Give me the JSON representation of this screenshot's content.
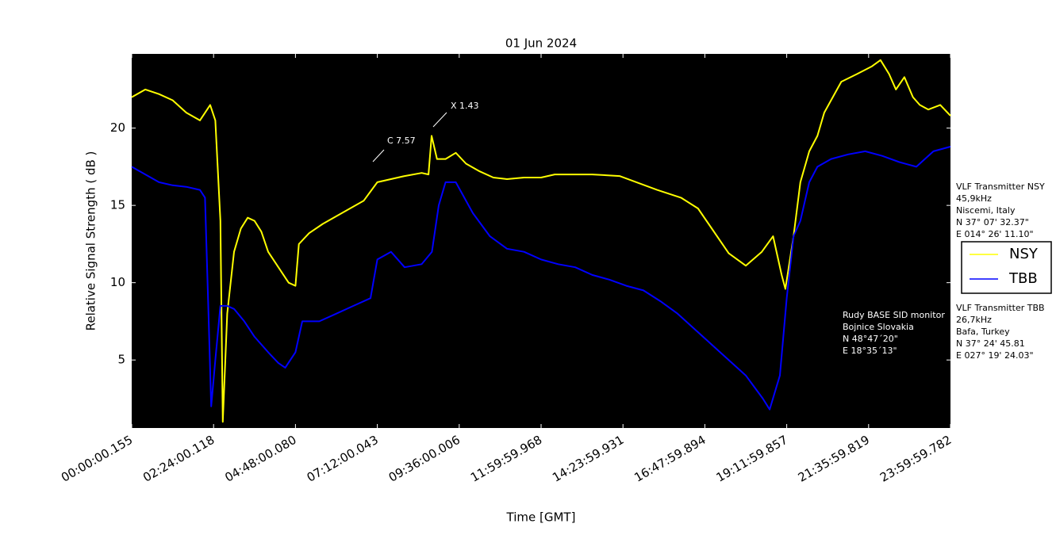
{
  "chart_data": {
    "type": "line",
    "title": "01 Jun 2024",
    "xlabel": "Time [GMT]",
    "ylabel": "Relative Signal Strength ( dB )",
    "xlim": [
      0,
      24
    ],
    "ylim": [
      0.6,
      24.8
    ],
    "xticks": [
      {
        "value": 0,
        "label": "00:00:00.155"
      },
      {
        "value": 2.4,
        "label": "02:24:00.118"
      },
      {
        "value": 4.8,
        "label": "04:48:00.080"
      },
      {
        "value": 7.2,
        "label": "07:12:00.043"
      },
      {
        "value": 9.6,
        "label": "09:36:00.006"
      },
      {
        "value": 12,
        "label": "11:59:59.968"
      },
      {
        "value": 14.4,
        "label": "14:23:59.931"
      },
      {
        "value": 16.8,
        "label": "16:47:59.894"
      },
      {
        "value": 19.2,
        "label": "19:11:59.857"
      },
      {
        "value": 21.6,
        "label": "21:35:59.819"
      },
      {
        "value": 24,
        "label": "23:59:59.782"
      }
    ],
    "yticks": [
      5,
      10,
      15,
      20
    ],
    "background": "#000000",
    "series": [
      {
        "name": "NSY",
        "color": "#ffff00",
        "x": [
          0,
          0.4,
          0.8,
          1.2,
          1.6,
          2.0,
          2.3,
          2.45,
          2.6,
          2.67,
          2.8,
          3.0,
          3.2,
          3.4,
          3.6,
          3.8,
          4.0,
          4.3,
          4.6,
          4.8,
          4.9,
          5.2,
          5.6,
          6.0,
          6.4,
          6.8,
          7.2,
          8.0,
          8.5,
          8.7,
          8.79,
          8.95,
          9.2,
          9.5,
          9.8,
          10.2,
          10.6,
          11.0,
          11.5,
          12.0,
          12.4,
          13.0,
          13.5,
          14.3,
          15.4,
          16.1,
          16.6,
          17.5,
          18.0,
          18.47,
          18.8,
          19.05,
          19.16,
          19.4,
          19.6,
          19.86,
          20.1,
          20.3,
          20.8,
          21.26,
          21.7,
          21.95,
          22.2,
          22.4,
          22.65,
          22.9,
          23.1,
          23.35,
          23.7,
          24
        ],
        "values": [
          22.0,
          22.5,
          22.2,
          21.8,
          21.0,
          20.5,
          21.5,
          20.5,
          14.0,
          1.0,
          8.0,
          12.0,
          13.5,
          14.2,
          14.0,
          13.3,
          12.0,
          11.0,
          10.0,
          9.8,
          12.5,
          13.2,
          13.8,
          14.3,
          14.8,
          15.3,
          16.5,
          16.9,
          17.1,
          17.0,
          19.5,
          18.0,
          18.0,
          18.4,
          17.7,
          17.2,
          16.8,
          16.7,
          16.8,
          16.8,
          17.0,
          17.0,
          17.0,
          16.9,
          16.0,
          15.5,
          14.8,
          11.9,
          11.1,
          12.0,
          13.0,
          10.5,
          9.6,
          13.0,
          16.5,
          18.5,
          19.5,
          21.0,
          23.0,
          23.5,
          24.0,
          24.4,
          23.5,
          22.5,
          23.3,
          22.0,
          21.5,
          21.2,
          21.5,
          20.8
        ]
      },
      {
        "name": "TBB",
        "color": "#0000ff",
        "x": [
          0,
          0.4,
          0.8,
          1.2,
          1.6,
          2.0,
          2.15,
          2.25,
          2.33,
          2.45,
          2.6,
          2.8,
          3.0,
          3.3,
          3.6,
          4.0,
          4.3,
          4.5,
          4.8,
          5.0,
          5.5,
          6.0,
          6.5,
          7.0,
          7.2,
          7.6,
          8.0,
          8.5,
          8.8,
          9.0,
          9.2,
          9.5,
          10.0,
          10.5,
          11.0,
          11.5,
          12.0,
          12.5,
          13.0,
          13.5,
          14.0,
          14.5,
          15.0,
          15.5,
          16.0,
          16.5,
          17.0,
          17.5,
          18.0,
          18.5,
          18.7,
          19.0,
          19.2,
          19.4,
          19.6,
          19.86,
          20.1,
          20.5,
          21.0,
          21.5,
          22.0,
          22.5,
          23.0,
          23.5,
          24
        ],
        "values": [
          17.5,
          17.0,
          16.5,
          16.3,
          16.2,
          16.0,
          15.5,
          8.0,
          2.0,
          5.0,
          8.5,
          8.5,
          8.3,
          7.5,
          6.5,
          5.5,
          4.8,
          4.5,
          5.5,
          7.5,
          7.5,
          8.0,
          8.5,
          9.0,
          11.5,
          12.0,
          11.0,
          11.2,
          12.0,
          15.0,
          16.5,
          16.5,
          14.5,
          13.0,
          12.2,
          12.0,
          11.5,
          11.2,
          11.0,
          10.5,
          10.2,
          9.8,
          9.5,
          8.8,
          8.0,
          7.0,
          6.0,
          5.0,
          4.0,
          2.5,
          1.8,
          4.0,
          9.0,
          13.0,
          14.0,
          16.5,
          17.5,
          18.0,
          18.3,
          18.5,
          18.2,
          17.8,
          17.5,
          18.5,
          18.8
        ]
      }
    ],
    "annotations": [
      "C 7.57",
      "X 1.43"
    ],
    "transmitter_nsy": [
      "VLF Transmitter NSY",
      "45,9kHz",
      "Niscemi, Italy",
      "N 37° 07' 32.37\"",
      "E 014° 26' 11.10\""
    ],
    "transmitter_tbb": [
      "VLF Transmitter TBB",
      "26,7kHz",
      "Bafa, Turkey",
      "N 37° 24' 45.81",
      "E 027° 19' 24.03\""
    ],
    "station": [
      "Rudy BASE SID monitor",
      "Bojnice Slovakia",
      "N 48°47´20\"",
      "E 18°35´13\""
    ]
  }
}
